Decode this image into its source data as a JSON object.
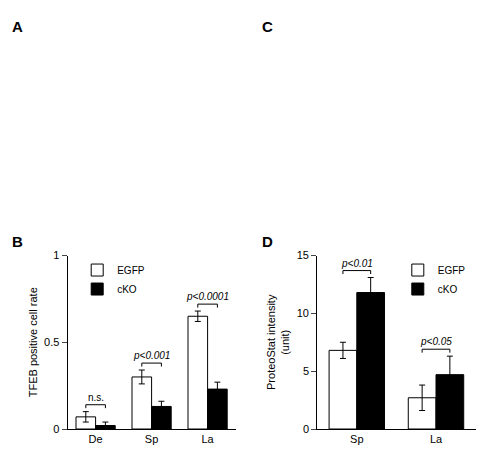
{
  "chart_data": [
    {
      "type": "bar",
      "title": "B",
      "categories": [
        "De",
        "Sp",
        "La"
      ],
      "series": [
        {
          "name": "EGFP",
          "color": "white",
          "values": [
            0.07,
            0.3,
            0.65
          ],
          "errors": [
            0.03,
            0.04,
            0.03
          ]
        },
        {
          "name": "cKO",
          "color": "black",
          "values": [
            0.02,
            0.13,
            0.23
          ],
          "errors": [
            0.02,
            0.03,
            0.04
          ]
        }
      ],
      "ylabel": "TFEB positive cell rate",
      "ylim": [
        0,
        1.0
      ],
      "yticks": [
        0,
        0.5,
        1
      ],
      "grid": false,
      "legend": "upper left",
      "annotations": [
        {
          "text": "n.s.",
          "category": "De"
        },
        {
          "text": "p<0.001",
          "category": "Sp"
        },
        {
          "text": "p<0.0001",
          "category": "La"
        }
      ]
    },
    {
      "type": "bar",
      "title": "D",
      "categories": [
        "Sp",
        "La"
      ],
      "series": [
        {
          "name": "EGFP",
          "color": "white",
          "values": [
            6.8,
            2.7
          ],
          "errors": [
            0.7,
            1.1
          ]
        },
        {
          "name": "cKO",
          "color": "black",
          "values": [
            11.8,
            4.7
          ],
          "errors": [
            1.3,
            1.6
          ]
        }
      ],
      "ylabel": "ProteoStat intensity\n(unit)",
      "ylim": [
        0,
        15
      ],
      "yticks": [
        0,
        5,
        10,
        15
      ],
      "grid": false,
      "legend": "upper right",
      "annotations": [
        {
          "text": "p<0.01",
          "category": "Sp"
        },
        {
          "text": "p<0.05",
          "category": "La"
        }
      ]
    }
  ],
  "annotations": [
    {
      "text": "A"
    },
    {
      "text": "C"
    }
  ]
}
